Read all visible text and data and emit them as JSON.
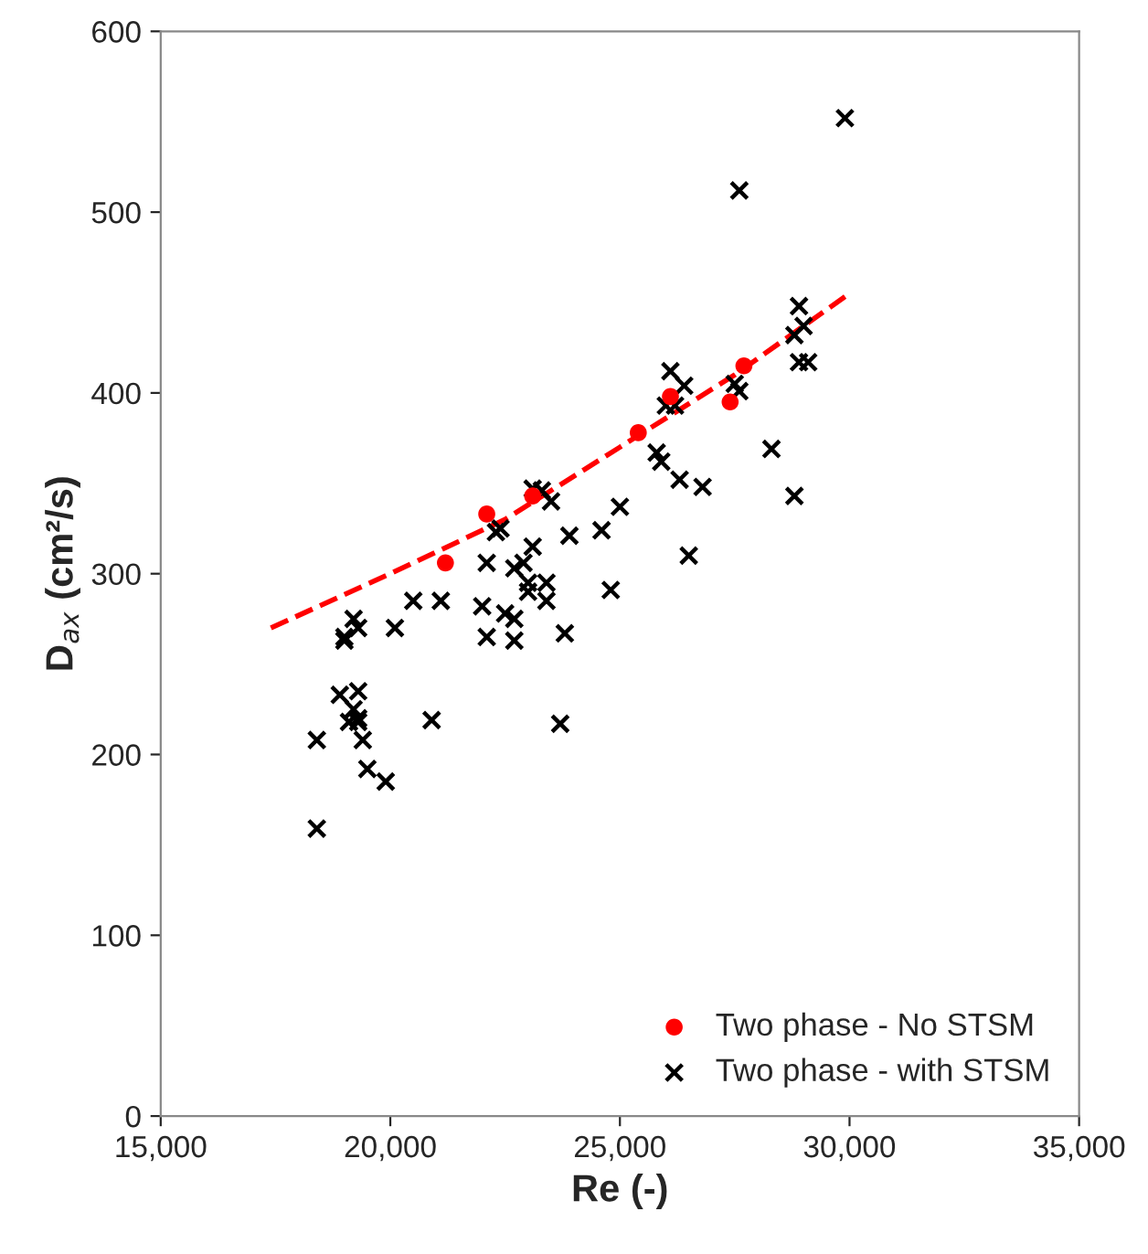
{
  "chart_data": {
    "type": "scatter",
    "xlabel": "Re (-)",
    "ylabel": "D$_{ax}$ (cm²/s)",
    "xlim": [
      15000,
      35000
    ],
    "xticks": [
      {
        "value": 15000,
        "label": "15,000"
      },
      {
        "value": 20000,
        "label": "20,000"
      },
      {
        "value": 25000,
        "label": "25,000"
      },
      {
        "value": 30000,
        "label": "30,000"
      },
      {
        "value": 35000,
        "label": "35,000"
      }
    ],
    "ylim": [
      0,
      600
    ],
    "yticks": [
      0,
      100,
      200,
      300,
      400,
      500,
      600
    ],
    "grid": false,
    "legend": "bottom right",
    "series": [
      {
        "name": "Two phase - No STSM",
        "color": "#ff0000",
        "marker": "circle",
        "x": [
          21200,
          22100,
          23100,
          25400,
          26100,
          27400,
          27700
        ],
        "values": [
          306,
          333,
          343,
          378,
          398,
          395,
          415
        ]
      },
      {
        "name": "Two phase - with STSM",
        "color": "#000000",
        "marker": "cross",
        "x": [
          18400,
          18400,
          18900,
          19000,
          19000,
          19100,
          19200,
          19200,
          19300,
          19300,
          19300,
          19300,
          19400,
          19500,
          19900,
          20100,
          20500,
          20900,
          21100,
          22000,
          22100,
          22100,
          22300,
          22400,
          22500,
          22700,
          22700,
          22700,
          22900,
          23000,
          23000,
          23100,
          23100,
          23300,
          23400,
          23400,
          23500,
          23700,
          23800,
          23900,
          24600,
          24800,
          25000,
          25800,
          25900,
          26000,
          26100,
          26200,
          26300,
          26400,
          26500,
          26800,
          27600,
          27500,
          27600,
          28300,
          28800,
          28800,
          28900,
          29000,
          28900,
          29100,
          29900
        ],
        "values": [
          159,
          208,
          233,
          263,
          265,
          218,
          225,
          275,
          270,
          235,
          220,
          218,
          208,
          192,
          185,
          270,
          285,
          219,
          285,
          282,
          265,
          306,
          323,
          325,
          278,
          275,
          263,
          303,
          306,
          295,
          290,
          315,
          347,
          346,
          295,
          285,
          340,
          217,
          267,
          321,
          324,
          291,
          337,
          367,
          362,
          393,
          412,
          393,
          352,
          404,
          310,
          348,
          512,
          405,
          401,
          369,
          343,
          432,
          448,
          437,
          417,
          417,
          552
        ]
      },
      {
        "type": "line",
        "color": "#ff0000",
        "line_style": "dashed",
        "marker": "none",
        "x": [
          17400,
          20000,
          22500,
          25000,
          27500,
          30000
        ],
        "values": [
          270,
          300,
          330,
          370,
          410,
          455
        ]
      }
    ]
  }
}
